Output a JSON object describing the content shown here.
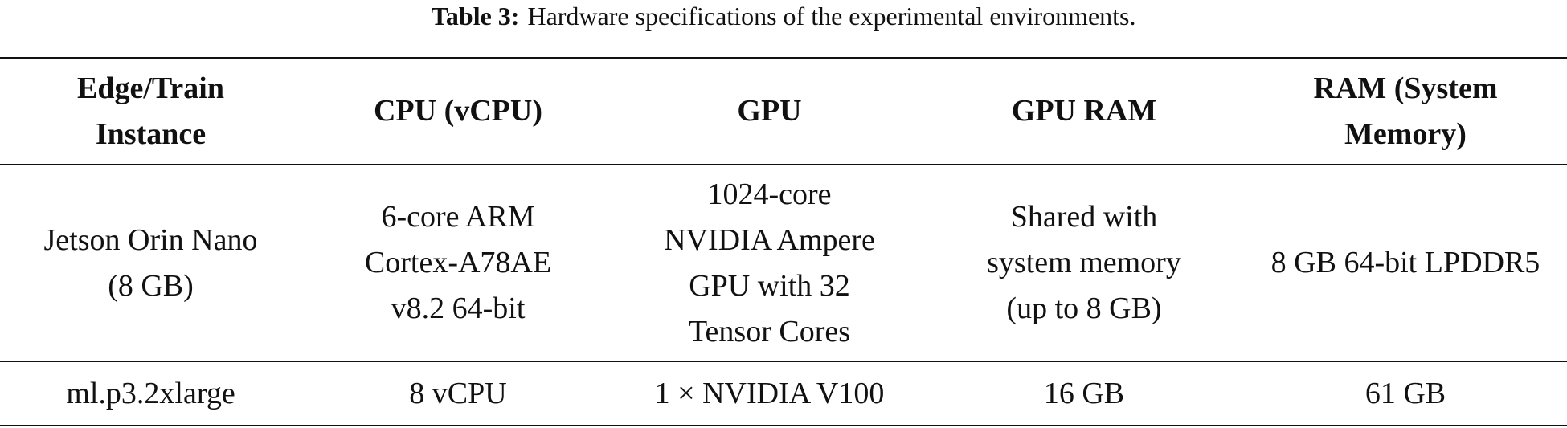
{
  "caption": {
    "label": "Table 3:",
    "text": "Hardware specifications of the experimental environments."
  },
  "table": {
    "header": [
      [
        "Edge/Train",
        "Instance"
      ],
      [
        "CPU (vCPU)"
      ],
      [
        "GPU"
      ],
      [
        "GPU RAM"
      ],
      [
        "RAM (System",
        "Memory)"
      ]
    ],
    "rows": [
      [
        [
          "Jetson Orin Nano",
          "(8 GB)"
        ],
        [
          "6-core ARM",
          "Cortex-A78AE",
          "v8.2 64-bit"
        ],
        [
          "1024-core",
          "NVIDIA Ampere",
          "GPU with 32",
          "Tensor Cores"
        ],
        [
          "Shared with",
          "system memory",
          "(up to 8 GB)"
        ],
        [
          "8 GB 64-bit LPDDR5"
        ]
      ],
      [
        [
          "ml.p3.2xlarge"
        ],
        [
          "8 vCPU"
        ],
        [
          "1 × NVIDIA V100"
        ],
        [
          "16 GB"
        ],
        [
          "61 GB"
        ]
      ]
    ]
  }
}
